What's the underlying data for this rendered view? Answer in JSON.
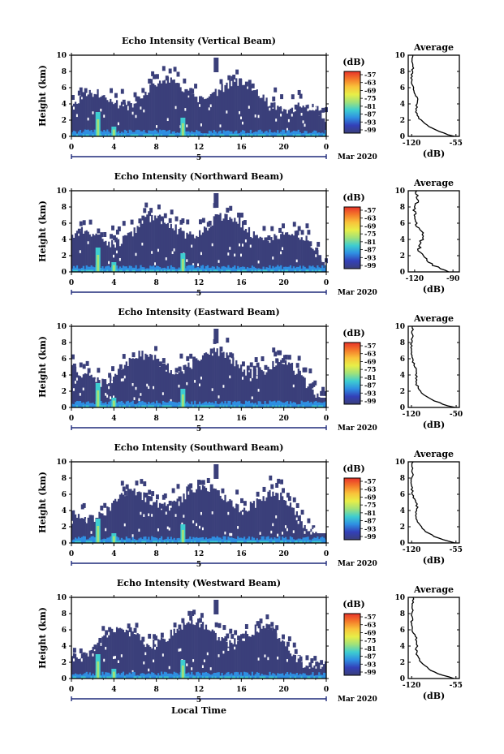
{
  "figure": {
    "xlabel": "Local Time",
    "ylabel": "Height (km)",
    "date_label": "Mar 2020",
    "day_marker": "5",
    "colorbar_unit": "(dB)",
    "average_title": "Average",
    "average_xlabel": "(dB)"
  },
  "chart_data": [
    {
      "type": "heatmap",
      "title": "Echo Intensity (Vertical Beam)",
      "xlabel": "",
      "ylabel": "Height (km)",
      "x_ticks": [
        "0",
        "4",
        "8",
        "12",
        "16",
        "20",
        "0"
      ],
      "y_ticks": [
        "0",
        "2",
        "4",
        "6",
        "8",
        "10"
      ],
      "xlim": [
        0,
        24
      ],
      "ylim": [
        0,
        10
      ],
      "colorbar": {
        "label": "(dB)",
        "ticks": [
          "-57",
          "-63",
          "-69",
          "-75",
          "-81",
          "-87",
          "-93",
          "-99"
        ]
      },
      "average": {
        "title": "Average",
        "xlabel": "(dB)",
        "xticks": [
          "-120",
          "-55"
        ],
        "xlim": [
          -125,
          -50
        ]
      }
    },
    {
      "type": "heatmap",
      "title": "Echo Intensity (Northward Beam)",
      "xlabel": "",
      "ylabel": "Height (km)",
      "x_ticks": [
        "0",
        "4",
        "8",
        "12",
        "16",
        "20",
        "0"
      ],
      "y_ticks": [
        "0",
        "2",
        "4",
        "6",
        "8",
        "10"
      ],
      "xlim": [
        0,
        24
      ],
      "ylim": [
        0,
        10
      ],
      "colorbar": {
        "label": "(dB)",
        "ticks": [
          "-57",
          "-63",
          "-69",
          "-75",
          "-81",
          "-87",
          "-93",
          "-99"
        ]
      },
      "average": {
        "title": "Average",
        "xlabel": "(dB)",
        "xticks": [
          "-120",
          "-90"
        ],
        "xlim": [
          -125,
          -85
        ]
      }
    },
    {
      "type": "heatmap",
      "title": "Echo Intensity (Eastward Beam)",
      "xlabel": "",
      "ylabel": "Height (km)",
      "x_ticks": [
        "0",
        "4",
        "8",
        "12",
        "16",
        "20",
        "0"
      ],
      "y_ticks": [
        "0",
        "2",
        "4",
        "6",
        "8",
        "10"
      ],
      "xlim": [
        0,
        24
      ],
      "ylim": [
        0,
        10
      ],
      "colorbar": {
        "label": "(dB)",
        "ticks": [
          "-57",
          "-63",
          "-69",
          "-75",
          "-81",
          "-87",
          "-93",
          "-99"
        ]
      },
      "average": {
        "title": "Average",
        "xlabel": "(dB)",
        "xticks": [
          "-120",
          "-50"
        ],
        "xlim": [
          -125,
          -45
        ]
      }
    },
    {
      "type": "heatmap",
      "title": "Echo Intensity (Southward Beam)",
      "xlabel": "",
      "ylabel": "Height (km)",
      "x_ticks": [
        "0",
        "4",
        "8",
        "12",
        "16",
        "20",
        "0"
      ],
      "y_ticks": [
        "0",
        "2",
        "4",
        "6",
        "8",
        "10"
      ],
      "xlim": [
        0,
        24
      ],
      "ylim": [
        0,
        10
      ],
      "colorbar": {
        "label": "(dB)",
        "ticks": [
          "-57",
          "-63",
          "-69",
          "-75",
          "-81",
          "-87",
          "-93",
          "-99"
        ]
      },
      "average": {
        "title": "Average",
        "xlabel": "(dB)",
        "xticks": [
          "-120",
          "-55"
        ],
        "xlim": [
          -125,
          -50
        ]
      }
    },
    {
      "type": "heatmap",
      "title": "Echo Intensity (Westward Beam)",
      "xlabel": "Local Time",
      "ylabel": "Height (km)",
      "x_ticks": [
        "0",
        "4",
        "8",
        "12",
        "16",
        "20",
        "0"
      ],
      "y_ticks": [
        "0",
        "2",
        "4",
        "6",
        "8",
        "10"
      ],
      "xlim": [
        0,
        24
      ],
      "ylim": [
        0,
        10
      ],
      "colorbar": {
        "label": "(dB)",
        "ticks": [
          "-57",
          "-63",
          "-69",
          "-75",
          "-81",
          "-87",
          "-93",
          "-99"
        ]
      },
      "average": {
        "title": "Average",
        "xlabel": "(dB)",
        "xticks": [
          "-120",
          "-55"
        ],
        "xlim": [
          -125,
          -50
        ]
      }
    }
  ],
  "colors": {
    "background": "#3a3f7a",
    "colormap": [
      "#e8332a",
      "#f47a2a",
      "#f9c33a",
      "#e7ee48",
      "#9fe17a",
      "#3ecdd0",
      "#2f8fe2",
      "#3340b8",
      "#3a3f7a"
    ],
    "axis": "#000000",
    "profile": "#000000",
    "marker": "#1f2a7a"
  }
}
